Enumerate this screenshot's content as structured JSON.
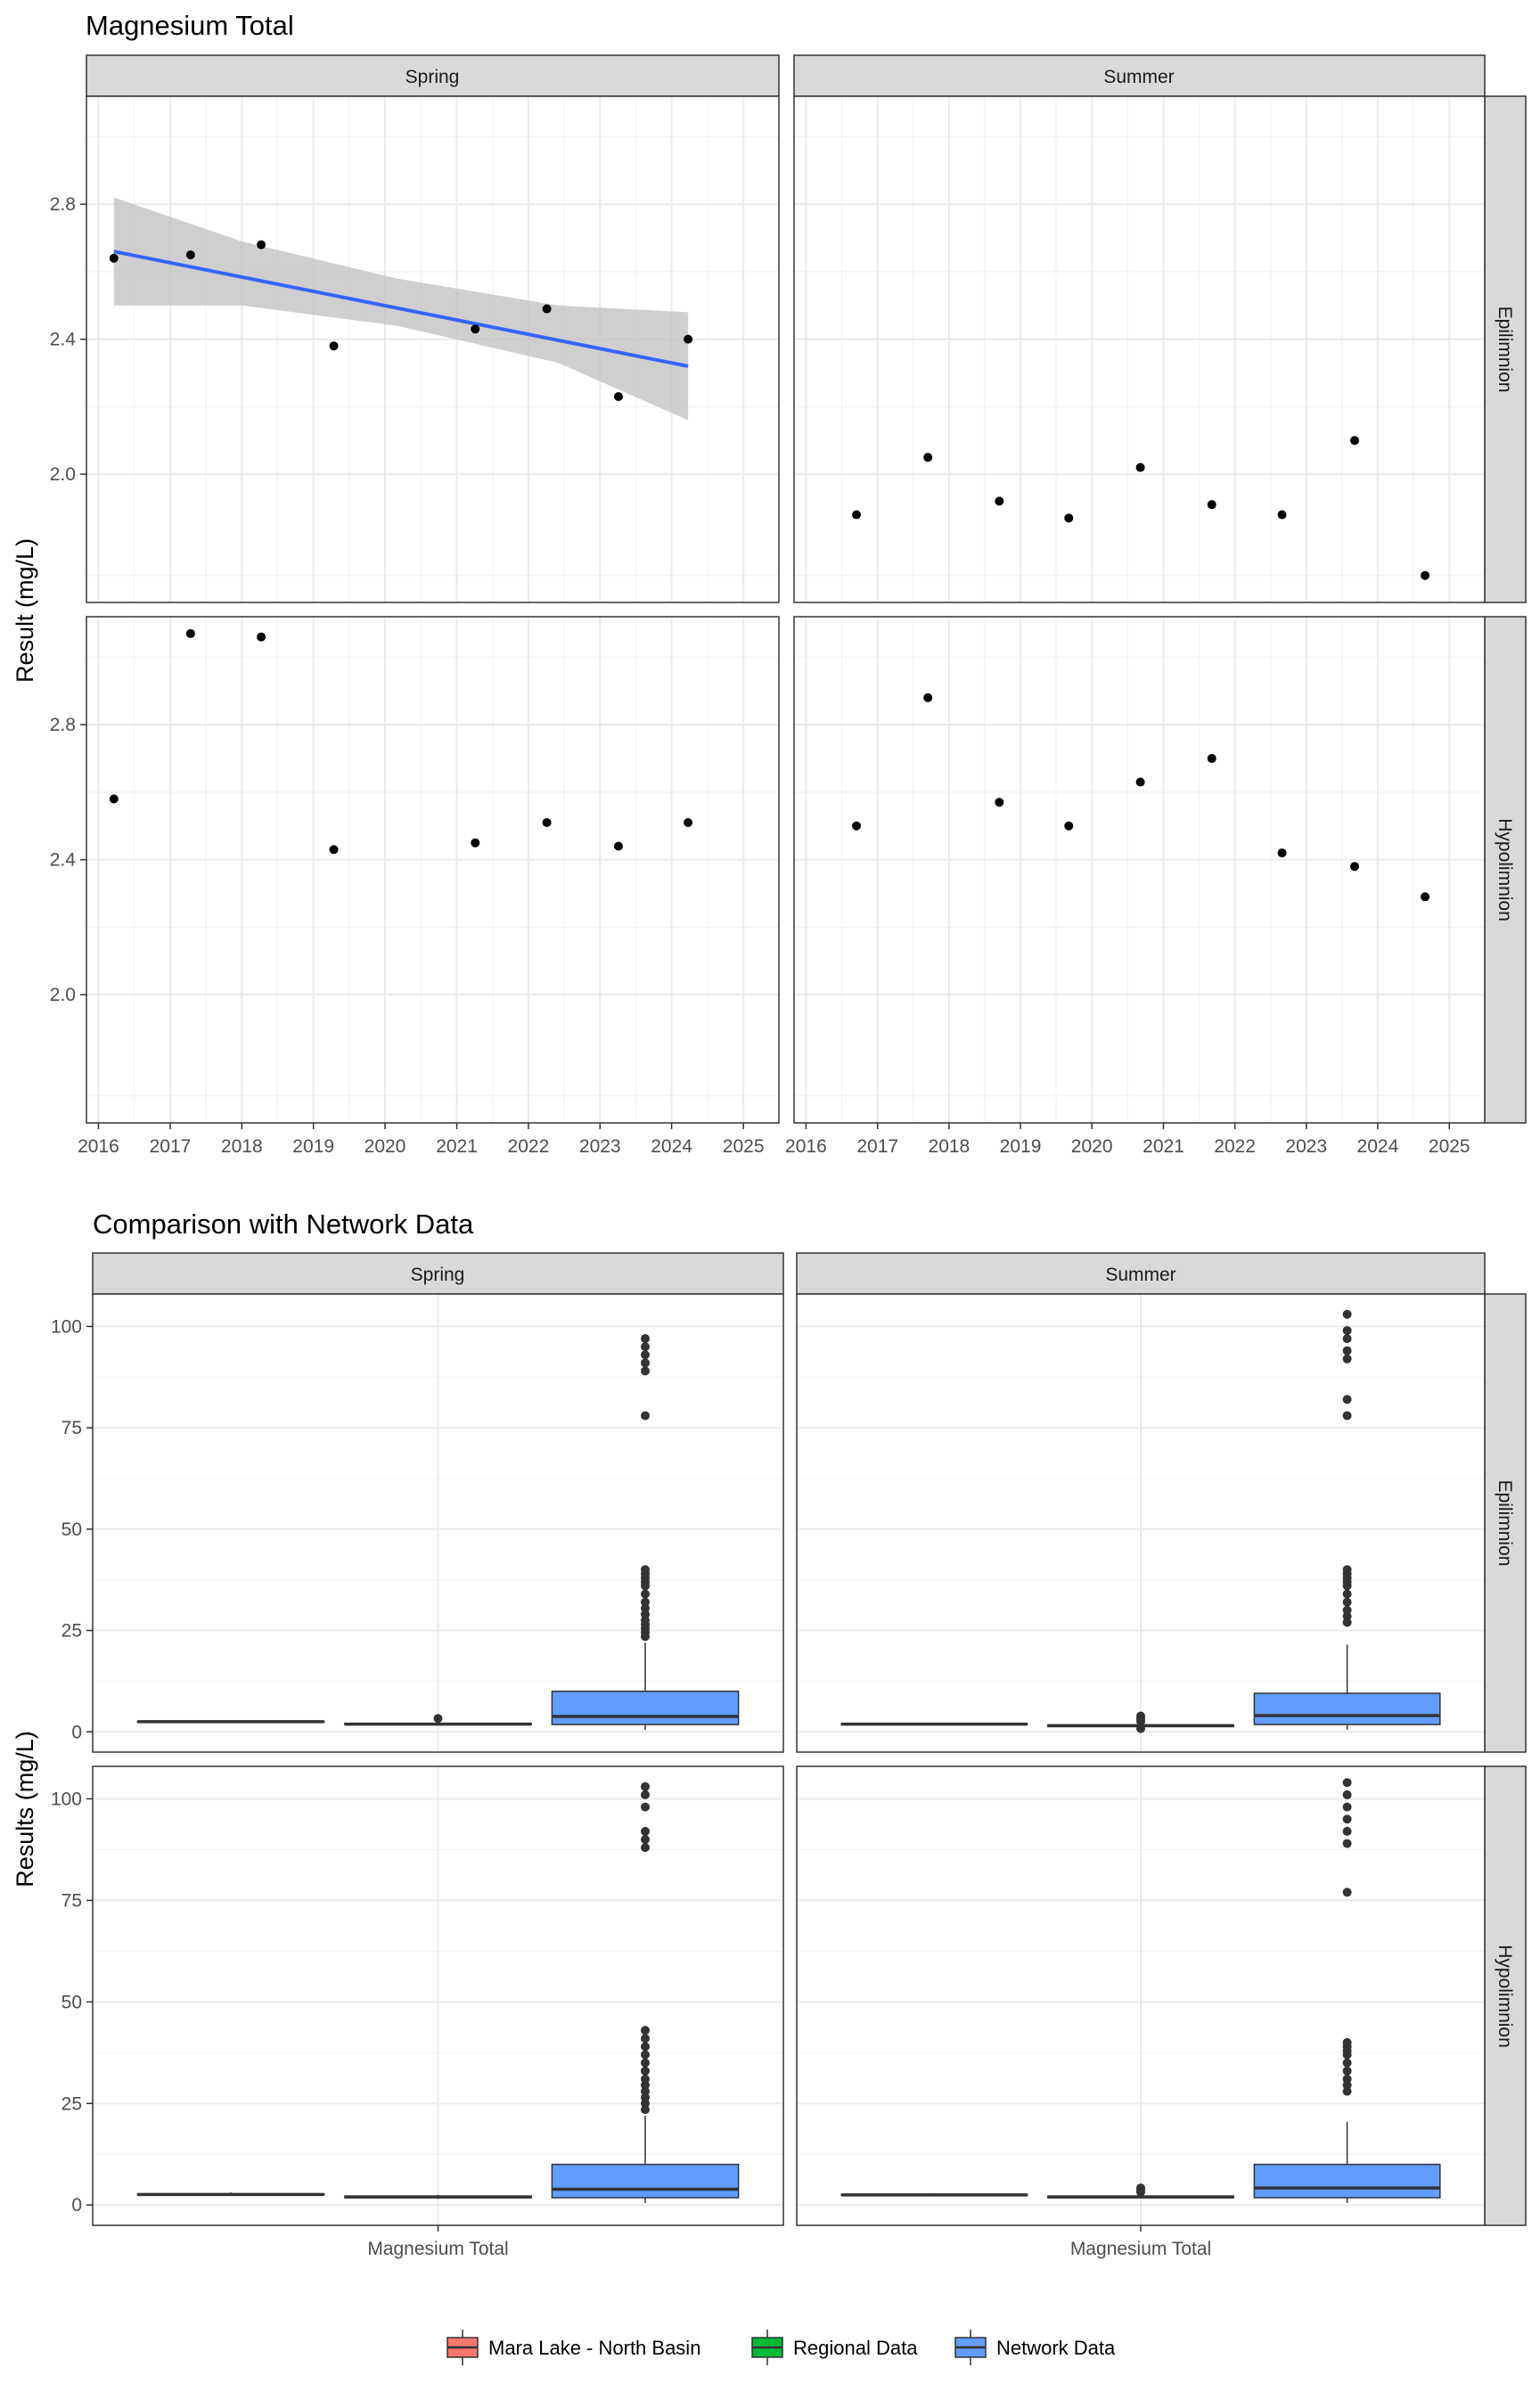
{
  "chart_data": [
    {
      "type": "scatter",
      "title": "Magnesium Total",
      "ylabel": "Result (mg/L)",
      "xlabel": "",
      "x_type": "date",
      "xlim": [
        "2015-11-01",
        "2025-07-01"
      ],
      "ylim": [
        1.62,
        3.12
      ],
      "y_ticks": [
        2.0,
        2.4,
        2.8
      ],
      "y_tick_labels": [
        "2.0",
        "2.4",
        "2.8"
      ],
      "x_ticks": [
        "2016-01-01",
        "2017-01-01",
        "2018-01-01",
        "2019-01-01",
        "2020-01-01",
        "2021-01-01",
        "2022-01-01",
        "2023-01-01",
        "2024-01-01",
        "2025-01-01"
      ],
      "x_tick_labels": [
        "2016",
        "2017",
        "2018",
        "2019",
        "2020",
        "2021",
        "2022",
        "2023",
        "2024",
        "2025"
      ],
      "grid": true,
      "columns": [
        "Spring",
        "Summer"
      ],
      "rows": [
        "Epilimnion",
        "Hypolimnion"
      ],
      "point_color": "#000000",
      "trend_color": "#3366ff",
      "band_color": "#bfbfbf",
      "panels": [
        {
          "col": "Spring",
          "row": "Epilimnion",
          "points": [
            {
              "date": "2016-03-20",
              "value": 2.64
            },
            {
              "date": "2017-04-15",
              "value": 2.65
            },
            {
              "date": "2018-04-10",
              "value": 2.68
            },
            {
              "date": "2019-04-15",
              "value": 2.38
            },
            {
              "date": "2021-04-05",
              "value": 2.43
            },
            {
              "date": "2022-04-05",
              "value": 2.49
            },
            {
              "date": "2023-04-05",
              "value": 2.23
            },
            {
              "date": "2024-03-25",
              "value": 2.4
            }
          ],
          "trend": {
            "start": {
              "date": "2016-03-20",
              "value": 2.66
            },
            "end": {
              "date": "2024-03-25",
              "value": 2.32
            },
            "band": [
              {
                "date": "2016-03-20",
                "lower": 2.5,
                "upper": 2.82
              },
              {
                "date": "2018-01-01",
                "lower": 2.5,
                "upper": 2.69
              },
              {
                "date": "2020-03-01",
                "lower": 2.44,
                "upper": 2.58
              },
              {
                "date": "2022-06-01",
                "lower": 2.33,
                "upper": 2.5
              },
              {
                "date": "2024-03-25",
                "lower": 2.16,
                "upper": 2.48
              }
            ]
          }
        },
        {
          "col": "Summer",
          "row": "Epilimnion",
          "points": [
            {
              "date": "2016-09-15",
              "value": 1.88
            },
            {
              "date": "2017-09-15",
              "value": 2.05
            },
            {
              "date": "2018-09-15",
              "value": 1.92
            },
            {
              "date": "2019-09-05",
              "value": 1.87
            },
            {
              "date": "2020-09-05",
              "value": 2.02
            },
            {
              "date": "2021-09-05",
              "value": 1.91
            },
            {
              "date": "2022-08-30",
              "value": 1.88
            },
            {
              "date": "2023-09-05",
              "value": 2.1
            },
            {
              "date": "2024-08-30",
              "value": 1.7
            }
          ]
        },
        {
          "col": "Spring",
          "row": "Hypolimnion",
          "points": [
            {
              "date": "2016-03-20",
              "value": 2.58
            },
            {
              "date": "2017-04-15",
              "value": 3.07
            },
            {
              "date": "2018-04-10",
              "value": 3.06
            },
            {
              "date": "2019-04-15",
              "value": 2.43
            },
            {
              "date": "2021-04-05",
              "value": 2.45
            },
            {
              "date": "2022-04-05",
              "value": 2.51
            },
            {
              "date": "2023-04-05",
              "value": 2.44
            },
            {
              "date": "2024-03-25",
              "value": 2.51
            }
          ]
        },
        {
          "col": "Summer",
          "row": "Hypolimnion",
          "points": [
            {
              "date": "2016-09-15",
              "value": 2.5
            },
            {
              "date": "2017-09-15",
              "value": 2.88
            },
            {
              "date": "2018-09-15",
              "value": 2.57
            },
            {
              "date": "2019-09-05",
              "value": 2.5
            },
            {
              "date": "2020-09-05",
              "value": 2.63
            },
            {
              "date": "2021-09-05",
              "value": 2.7
            },
            {
              "date": "2022-08-30",
              "value": 2.42
            },
            {
              "date": "2023-09-05",
              "value": 2.38
            },
            {
              "date": "2024-08-30",
              "value": 2.29
            }
          ]
        }
      ]
    },
    {
      "type": "box",
      "title": "Comparison with Network Data",
      "ylabel": "Results (mg/L)",
      "xlabel": "",
      "category": "Magnesium Total",
      "ylim": [
        -5,
        108
      ],
      "y_ticks": [
        0,
        25,
        50,
        75,
        100
      ],
      "y_tick_labels": [
        "0",
        "25",
        "50",
        "75",
        "100"
      ],
      "grid": true,
      "columns": [
        "Spring",
        "Summer"
      ],
      "rows": [
        "Epilimnion",
        "Hypolimnion"
      ],
      "legend": {
        "position": "bottom",
        "entries": [
          {
            "label": "Mara Lake - North Basin",
            "color": "#f8766d"
          },
          {
            "label": "Regional Data",
            "color": "#00ba38"
          },
          {
            "label": "Network Data",
            "color": "#619cff"
          }
        ]
      },
      "panels": [
        {
          "col": "Spring",
          "row": "Epilimnion",
          "groups": [
            {
              "series": "Mara Lake - North Basin",
              "min": 2.3,
              "q1": 2.4,
              "median": 2.5,
              "q3": 2.6,
              "max": 2.7,
              "outliers": []
            },
            {
              "series": "Regional Data",
              "min": 1.6,
              "q1": 1.8,
              "median": 1.9,
              "q3": 2.1,
              "max": 2.3,
              "outliers": [
                3.3
              ]
            },
            {
              "series": "Network Data",
              "min": 0.5,
              "q1": 1.8,
              "median": 3.8,
              "q3": 10.0,
              "max": 22.0,
              "outliers": [
                23.5,
                24.5,
                25.5,
                26.5,
                27.5,
                29,
                30.5,
                32,
                34,
                36,
                37,
                38,
                39,
                40,
                78,
                89,
                91,
                93,
                95,
                97
              ]
            }
          ]
        },
        {
          "col": "Summer",
          "row": "Epilimnion",
          "groups": [
            {
              "series": "Mara Lake - North Basin",
              "min": 1.7,
              "q1": 1.8,
              "median": 1.9,
              "q3": 2.0,
              "max": 2.1,
              "outliers": []
            },
            {
              "series": "Regional Data",
              "min": 1.2,
              "q1": 1.3,
              "median": 1.5,
              "q3": 1.7,
              "max": 1.9,
              "outliers": [
                0.8,
                2.6,
                3.3,
                3.9
              ]
            },
            {
              "series": "Network Data",
              "min": 0.5,
              "q1": 1.8,
              "median": 4.0,
              "q3": 9.5,
              "max": 21.5,
              "outliers": [
                27,
                28.5,
                30,
                32,
                34,
                36,
                37,
                38,
                39,
                40,
                78,
                82,
                92,
                94,
                97,
                99,
                103
              ]
            }
          ]
        },
        {
          "col": "Spring",
          "row": "Hypolimnion",
          "groups": [
            {
              "series": "Mara Lake - North Basin",
              "min": 2.4,
              "q1": 2.5,
              "median": 2.6,
              "q3": 2.7,
              "max": 3.1,
              "outliers": []
            },
            {
              "series": "Regional Data",
              "min": 1.5,
              "q1": 1.8,
              "median": 2.0,
              "q3": 2.2,
              "max": 2.5,
              "outliers": []
            },
            {
              "series": "Network Data",
              "min": 0.5,
              "q1": 1.8,
              "median": 3.9,
              "q3": 10.0,
              "max": 22.0,
              "outliers": [
                23.5,
                25,
                26.5,
                28,
                29.5,
                31,
                33,
                35,
                37,
                39,
                41,
                43,
                88,
                90,
                92,
                98,
                101,
                103
              ]
            }
          ]
        },
        {
          "col": "Summer",
          "row": "Hypolimnion",
          "groups": [
            {
              "series": "Mara Lake - North Basin",
              "min": 2.3,
              "q1": 2.4,
              "median": 2.5,
              "q3": 2.6,
              "max": 2.9,
              "outliers": []
            },
            {
              "series": "Regional Data",
              "min": 1.6,
              "q1": 1.8,
              "median": 2.0,
              "q3": 2.2,
              "max": 2.4,
              "outliers": [
                3.2,
                3.8,
                4.2
              ]
            },
            {
              "series": "Network Data",
              "min": 0.5,
              "q1": 1.8,
              "median": 4.2,
              "q3": 10.0,
              "max": 20.5,
              "outliers": [
                28,
                29.5,
                31,
                33,
                35,
                37,
                38,
                39,
                40,
                77,
                89,
                92,
                95,
                98,
                101,
                104
              ]
            }
          ]
        }
      ]
    }
  ]
}
